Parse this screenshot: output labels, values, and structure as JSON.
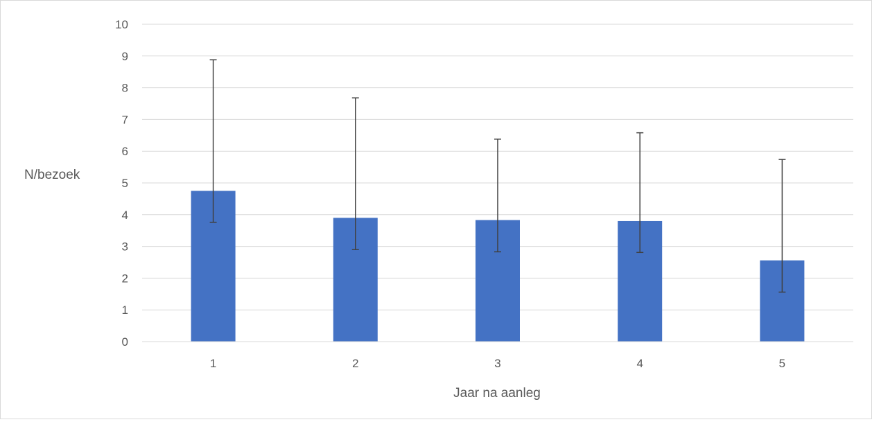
{
  "chart_data": {
    "type": "bar",
    "title": "",
    "xlabel": "Jaar na aanleg",
    "ylabel": "N/bezoek",
    "categories": [
      "1",
      "2",
      "3",
      "4",
      "5"
    ],
    "values": [
      4.75,
      3.9,
      3.83,
      3.8,
      2.56
    ],
    "error_upper": [
      8.88,
      7.68,
      6.38,
      6.58,
      5.74
    ],
    "error_lower": [
      3.76,
      2.9,
      2.83,
      2.81,
      1.56
    ],
    "ylim": [
      0,
      10
    ],
    "yticks": [
      "0",
      "1",
      "2",
      "3",
      "4",
      "5",
      "6",
      "7",
      "8",
      "9",
      "10"
    ],
    "grid": true,
    "legend": "none",
    "bar_color": "#4472C4",
    "error_bar_color": "#404040",
    "gridline_color": "#d9d9d9"
  }
}
